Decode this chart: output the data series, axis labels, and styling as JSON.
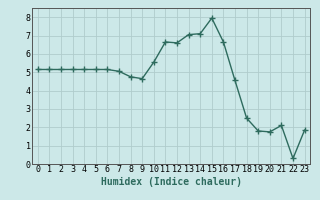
{
  "x": [
    0,
    1,
    2,
    3,
    4,
    5,
    6,
    7,
    8,
    9,
    10,
    11,
    12,
    13,
    14,
    15,
    16,
    17,
    18,
    19,
    20,
    21,
    22,
    23
  ],
  "y": [
    5.15,
    5.15,
    5.15,
    5.15,
    5.15,
    5.15,
    5.15,
    5.05,
    4.75,
    4.65,
    5.55,
    6.65,
    6.6,
    7.05,
    7.1,
    7.95,
    6.65,
    4.55,
    2.5,
    1.8,
    1.75,
    2.1,
    0.3,
    1.85
  ],
  "line_color": "#2e6b5e",
  "marker": "+",
  "markersize": 4,
  "markeredgewidth": 1.0,
  "linewidth": 1.0,
  "bg_color": "#cce8e8",
  "grid_color": "#b0cccc",
  "xlabel": "Humidex (Indice chaleur)",
  "xlabel_fontsize": 7,
  "ylim": [
    0,
    8.5
  ],
  "xlim": [
    -0.5,
    23.5
  ],
  "yticks": [
    0,
    1,
    2,
    3,
    4,
    5,
    6,
    7,
    8
  ],
  "xticks": [
    0,
    1,
    2,
    3,
    4,
    5,
    6,
    7,
    8,
    9,
    10,
    11,
    12,
    13,
    14,
    15,
    16,
    17,
    18,
    19,
    20,
    21,
    22,
    23
  ],
  "tick_fontsize": 6,
  "fig_bg": "#cce8e8",
  "spine_color": "#555555"
}
